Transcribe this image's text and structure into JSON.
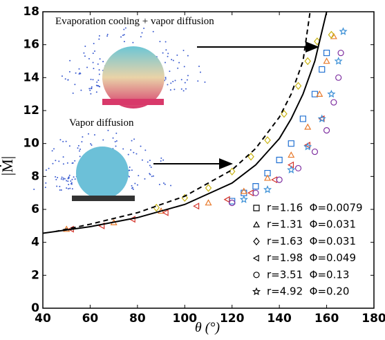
{
  "chart_data": {
    "type": "scatter",
    "xlabel": "θ (°)",
    "ylabel": "|Ṁ|",
    "xlim": [
      40,
      180
    ],
    "xticks": [
      40,
      60,
      80,
      100,
      120,
      140,
      160,
      180
    ],
    "ylim": [
      0,
      18
    ],
    "yticks": [
      0,
      2,
      4,
      6,
      8,
      10,
      12,
      14,
      16,
      18
    ],
    "grid": false,
    "legend_position": "lower right",
    "annotations": [
      "Evaporation cooling + vapor diffusion",
      "Vapor diffusion"
    ],
    "series": [
      {
        "name": "r=1.16  Φ=0.0079",
        "marker": "square",
        "color": "#1f6fd1",
        "x": [
          120,
          125,
          130,
          135,
          140,
          145,
          150,
          155,
          158,
          160
        ],
        "values": [
          6.5,
          7,
          7.4,
          8.2,
          9,
          10,
          11.5,
          13,
          14.5,
          15.5
        ]
      },
      {
        "name": "r=1.31  Φ=0.031",
        "marker": "triangle",
        "color": "#e8792a",
        "x": [
          50,
          70,
          90,
          110,
          125,
          135,
          145,
          152,
          157,
          160,
          163
        ],
        "values": [
          4.8,
          5.2,
          5.9,
          6.4,
          7.1,
          7.9,
          9.3,
          11,
          13,
          15,
          16.5
        ]
      },
      {
        "name": "r=1.63  Φ=0.031",
        "marker": "diamond",
        "color": "#c9b414",
        "x": [
          88,
          100,
          110,
          120,
          128,
          135,
          142,
          148,
          152,
          156,
          162
        ],
        "values": [
          6.1,
          6.7,
          7.3,
          8.3,
          9.2,
          10.2,
          11.8,
          13.5,
          15,
          16.2,
          16.6
        ]
      },
      {
        "name": "r=1.98  Φ=0.049",
        "marker": "triangle-left",
        "color": "#d4342a",
        "x": [
          52,
          65,
          78,
          92,
          105,
          118,
          128,
          138,
          145,
          152,
          158
        ],
        "values": [
          4.8,
          5,
          5.4,
          5.8,
          6.2,
          6.6,
          7,
          7.8,
          8.7,
          9.9,
          11.5
        ]
      },
      {
        "name": "r=3.51  Φ=0.13",
        "marker": "circle",
        "color": "#7e2fa0",
        "x": [
          120,
          130,
          140,
          148,
          155,
          160,
          163,
          165,
          166
        ],
        "values": [
          6.4,
          7,
          7.8,
          8.5,
          9.5,
          10.8,
          12.5,
          14,
          15.5
        ]
      },
      {
        "name": "r=4.92  Φ=0.20",
        "marker": "star",
        "color": "#3a8fd6",
        "x": [
          125,
          135,
          145,
          152,
          158,
          162,
          165,
          167
        ],
        "values": [
          6.6,
          7.2,
          8.4,
          9.8,
          11.5,
          13,
          15,
          16.8
        ]
      }
    ],
    "curves": [
      {
        "style": "solid",
        "color": "#000000",
        "x": [
          40,
          60,
          80,
          100,
          120,
          130,
          140,
          145,
          150,
          155,
          160
        ],
        "values": [
          4.55,
          4.95,
          5.5,
          6.3,
          7.6,
          8.7,
          10.3,
          11.5,
          13,
          15,
          18
        ]
      },
      {
        "style": "dashed",
        "color": "#000000",
        "x": [
          45,
          60,
          80,
          100,
          120,
          130,
          140,
          145,
          150,
          153
        ],
        "values": [
          4.65,
          5.1,
          5.8,
          6.8,
          8.4,
          9.7,
          11.6,
          13,
          15,
          18
        ]
      }
    ]
  }
}
